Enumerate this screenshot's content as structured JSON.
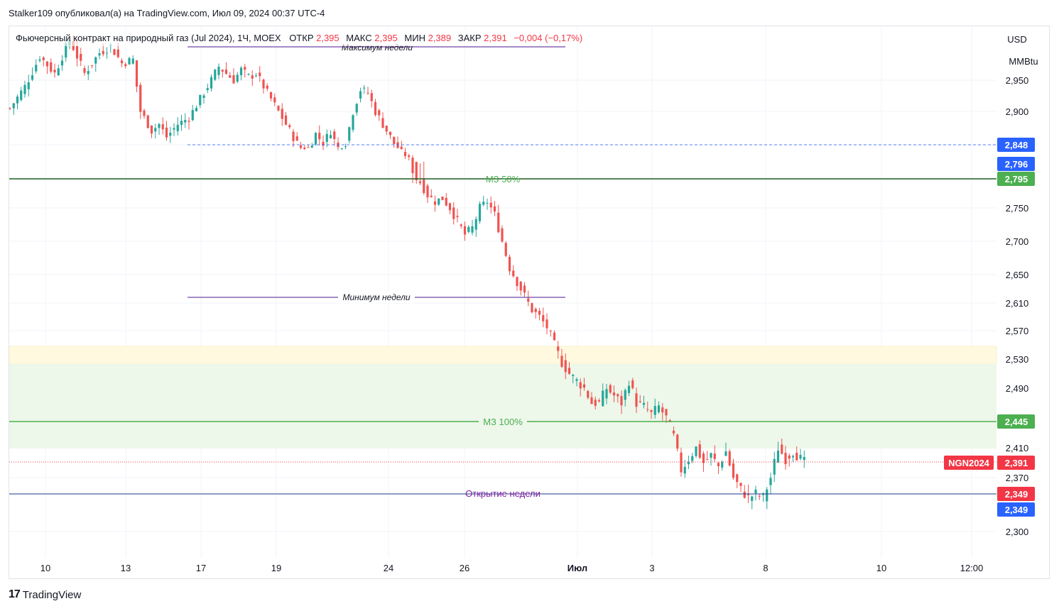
{
  "header": {
    "text": "Stalker109 опубликовал(а) на TradingView.com, Июл 09, 2024 00:37 UTC-4"
  },
  "legend": {
    "symbol": "Фьючерсный контракт на природный газ (Jul 2024), 1Ч, MOEX",
    "open_label": "ОТКР",
    "open": "2,395",
    "high_label": "МАКС",
    "high": "2,395",
    "low_label": "МИН",
    "low": "2,389",
    "close_label": "ЗАКР",
    "close": "2,391",
    "change": "−0,004 (−0,17%)"
  },
  "axis": {
    "currency": "USD",
    "unit": "MMBtu",
    "y_ticks": [
      "2,950",
      "2,900",
      "2,750",
      "2,700",
      "2,650",
      "2,610",
      "2,570",
      "2,530",
      "2,490",
      "2,410",
      "2,370",
      "2,300"
    ],
    "x_ticks": [
      "10",
      "13",
      "17",
      "19",
      "24",
      "26",
      "Июл",
      "3",
      "8",
      "10",
      "12:00"
    ]
  },
  "annotations": {
    "week_high": "Максимум недели",
    "week_low": "Минимум недели",
    "mz50": "МЗ 50%",
    "mz100": "МЗ 100%",
    "week_open": "Открытие недели"
  },
  "price_labels": {
    "p2848": "2,848",
    "p2796": "2,796",
    "p2795": "2,795",
    "p2445": "2,445",
    "ticker": "NGN2024",
    "last": "2,391",
    "p2349a": "2,349",
    "p2349b": "2,349"
  },
  "colors": {
    "up": "#26a69a",
    "down": "#ef5350",
    "mz_line": "#4caf50",
    "blue_label": "#2962ff",
    "green_label": "#4caf50",
    "red_label": "#f23645",
    "zone_yellow": "#fff9e0",
    "zone_green": "#edf7ea"
  },
  "footer": {
    "brand": "TradingView"
  },
  "chart_data": {
    "type": "candlestick",
    "title": "Фьючерсный контракт на природный газ (Jul 2024), 1Ч, MOEX",
    "path": [
      [
        0,
        2.905
      ],
      [
        4,
        2.94
      ],
      [
        8,
        2.985
      ],
      [
        12,
        2.96
      ],
      [
        16,
        3.01
      ],
      [
        20,
        2.96
      ],
      [
        24,
        2.99
      ],
      [
        27,
        3.0
      ],
      [
        30,
        2.975
      ],
      [
        33,
        2.98
      ],
      [
        35,
        2.9
      ],
      [
        38,
        2.87
      ],
      [
        40,
        2.88
      ],
      [
        42,
        2.86
      ],
      [
        45,
        2.88
      ],
      [
        48,
        2.89
      ],
      [
        51,
        2.92
      ],
      [
        54,
        2.95
      ],
      [
        56,
        2.97
      ],
      [
        58,
        2.96
      ],
      [
        60,
        2.95
      ],
      [
        62,
        2.965
      ],
      [
        64,
        2.955
      ],
      [
        66,
        2.96
      ],
      [
        68,
        2.94
      ],
      [
        70,
        2.92
      ],
      [
        72,
        2.9
      ],
      [
        74,
        2.88
      ],
      [
        76,
        2.86
      ],
      [
        78,
        2.84
      ],
      [
        80,
        2.84
      ],
      [
        82,
        2.865
      ],
      [
        84,
        2.85
      ],
      [
        86,
        2.87
      ],
      [
        88,
        2.84
      ],
      [
        90,
        2.85
      ],
      [
        92,
        2.9
      ],
      [
        94,
        2.935
      ],
      [
        96,
        2.93
      ],
      [
        98,
        2.9
      ],
      [
        100,
        2.88
      ],
      [
        102,
        2.86
      ],
      [
        104,
        2.84
      ],
      [
        106,
        2.82
      ],
      [
        108,
        2.8
      ],
      [
        110,
        2.79
      ],
      [
        112,
        2.77
      ],
      [
        114,
        2.76
      ],
      [
        116,
        2.765
      ],
      [
        118,
        2.75
      ],
      [
        120,
        2.73
      ],
      [
        122,
        2.71
      ],
      [
        124,
        2.72
      ],
      [
        126,
        2.75
      ],
      [
        128,
        2.76
      ],
      [
        130,
        2.74
      ],
      [
        132,
        2.7
      ],
      [
        134,
        2.66
      ],
      [
        136,
        2.64
      ],
      [
        138,
        2.62
      ],
      [
        140,
        2.6
      ],
      [
        142,
        2.59
      ],
      [
        144,
        2.575
      ],
      [
        146,
        2.55
      ],
      [
        148,
        2.525
      ],
      [
        150,
        2.51
      ],
      [
        152,
        2.5
      ],
      [
        154,
        2.49
      ],
      [
        156,
        2.47
      ],
      [
        158,
        2.47
      ],
      [
        160,
        2.49
      ],
      [
        162,
        2.48
      ],
      [
        164,
        2.47
      ],
      [
        166,
        2.5
      ],
      [
        168,
        2.47
      ],
      [
        170,
        2.465
      ],
      [
        172,
        2.455
      ],
      [
        174,
        2.465
      ],
      [
        176,
        2.45
      ],
      [
        178,
        2.425
      ],
      [
        180,
        2.38
      ],
      [
        182,
        2.395
      ],
      [
        184,
        2.41
      ],
      [
        186,
        2.39
      ],
      [
        188,
        2.4
      ],
      [
        190,
        2.385
      ],
      [
        192,
        2.405
      ],
      [
        194,
        2.37
      ],
      [
        196,
        2.355
      ],
      [
        198,
        2.345
      ],
      [
        200,
        2.35
      ],
      [
        202,
        2.345
      ],
      [
        204,
        2.37
      ],
      [
        206,
        2.41
      ],
      [
        208,
        2.395
      ],
      [
        210,
        2.405
      ],
      [
        212,
        2.395
      ],
      [
        213,
        2.391
      ]
    ]
  }
}
